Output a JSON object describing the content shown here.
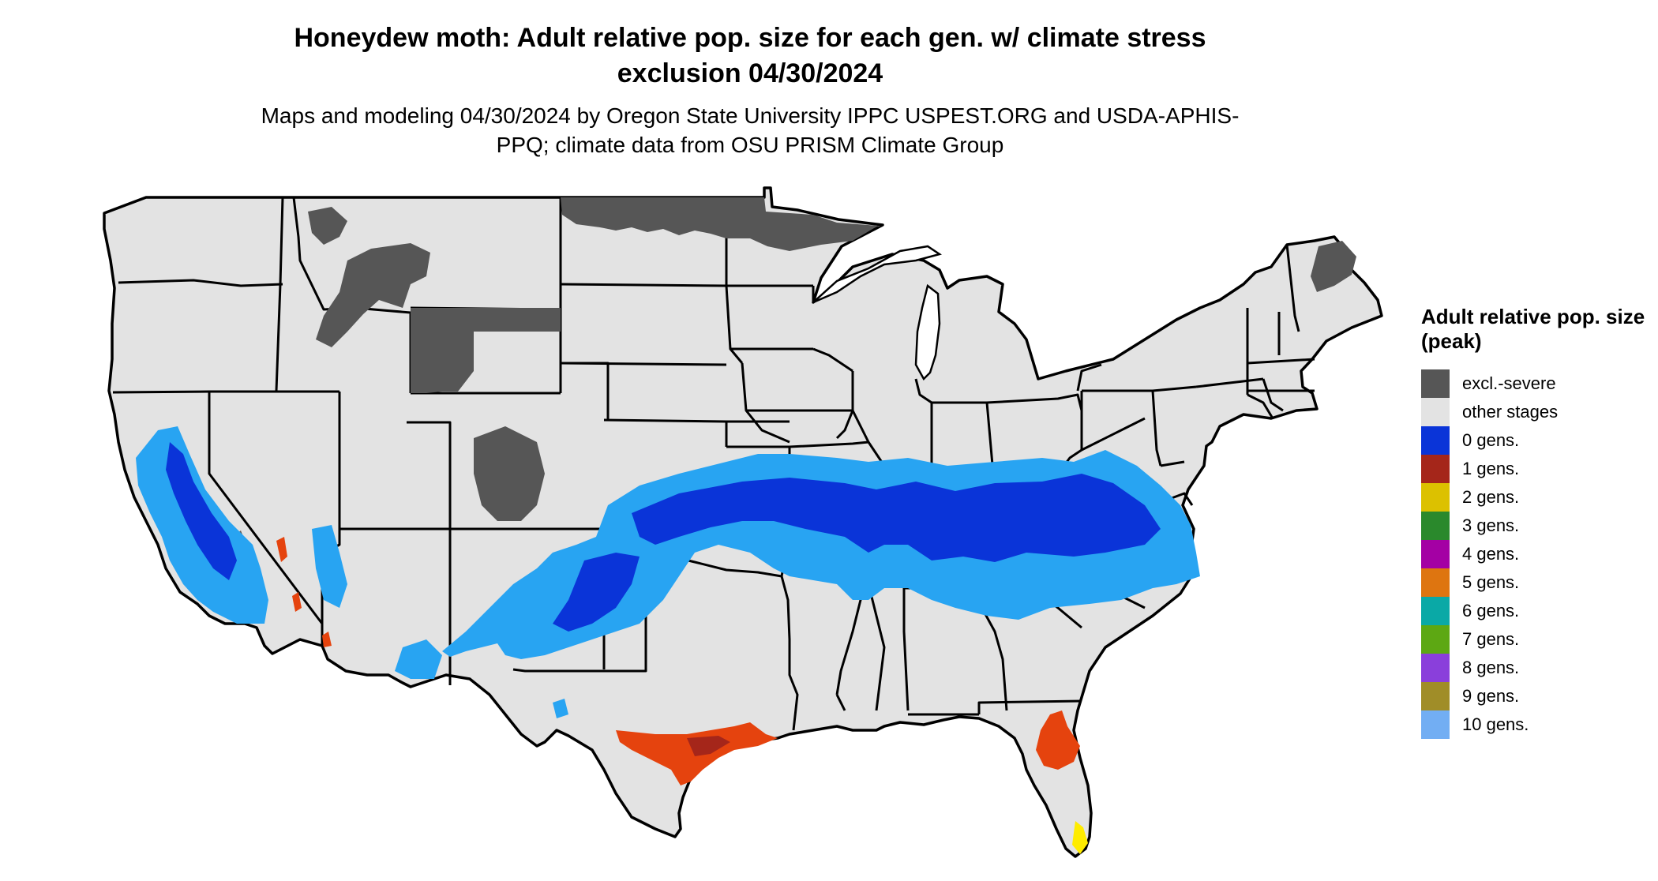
{
  "title": "Honeydew moth: Adult relative pop. size for each gen. w/ climate stress exclusion 04/30/2024",
  "subtitle": "Maps and modeling 04/30/2024 by Oregon State University IPPC USPEST.ORG and USDA-APHIS-PPQ; climate data from OSU PRISM Climate Group",
  "map": {
    "region": "contiguous United States",
    "land_color": "#e3e3e3",
    "excluded_color": "#565656",
    "border_color": "#000000"
  },
  "legend": {
    "title": "Adult relative pop. size (peak)",
    "items": [
      {
        "label": "excl.-severe",
        "color": "#565656"
      },
      {
        "label": "other stages",
        "color": "#e3e3e3"
      },
      {
        "label": "0 gens.",
        "color": "#0a34d8"
      },
      {
        "label": "1 gens.",
        "color": "#a5261a"
      },
      {
        "label": "2 gens.",
        "color": "#dcc100"
      },
      {
        "label": "3 gens.",
        "color": "#2a892c"
      },
      {
        "label": "4 gens.",
        "color": "#a400a4"
      },
      {
        "label": "5 gens.",
        "color": "#de7510"
      },
      {
        "label": "6 gens.",
        "color": "#0aa9a6"
      },
      {
        "label": "7 gens.",
        "color": "#5da813"
      },
      {
        "label": "8 gens.",
        "color": "#8a3fdb"
      },
      {
        "label": "9 gens.",
        "color": "#a08d28"
      },
      {
        "label": "10 gens.",
        "color": "#72aef3"
      }
    ]
  }
}
